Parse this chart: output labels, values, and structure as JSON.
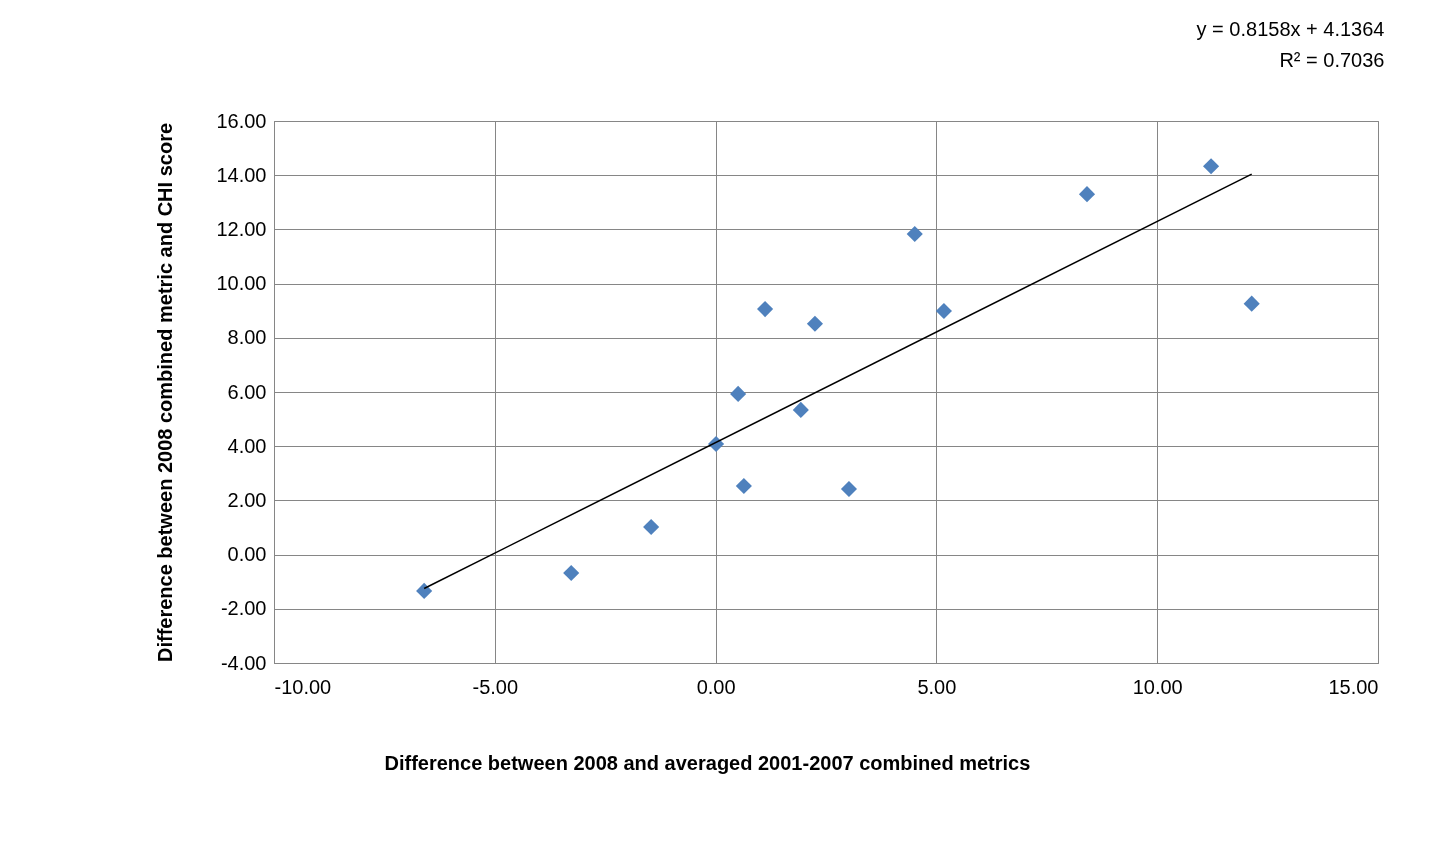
{
  "chart_data": {
    "type": "scatter",
    "xlabel": "Difference between 2008 and averaged 2001-2007 combined metrics",
    "ylabel": "Difference between 2008 combined metric and CHI score",
    "annotations": [
      "y = 0.8158x + 4.1364",
      "R² = 0.7036"
    ],
    "xlim": [
      -10,
      15
    ],
    "xticks": [
      {
        "value": -10,
        "label": "-10.00"
      },
      {
        "value": -5,
        "label": "-5.00"
      },
      {
        "value": 0,
        "label": "0.00"
      },
      {
        "value": 5,
        "label": "5.00"
      },
      {
        "value": 10,
        "label": "10.00"
      },
      {
        "value": 15,
        "label": "15.00"
      }
    ],
    "ylim": [
      -4,
      16
    ],
    "yticks": [
      {
        "value": -4,
        "label": "-4.00"
      },
      {
        "value": -2,
        "label": "-2.00"
      },
      {
        "value": 0,
        "label": "0.00"
      },
      {
        "value": 2,
        "label": "2.00"
      },
      {
        "value": 4,
        "label": "4.00"
      },
      {
        "value": 6,
        "label": "6.00"
      },
      {
        "value": 8,
        "label": "8.00"
      },
      {
        "value": 10,
        "label": "10.00"
      },
      {
        "value": 12,
        "label": "12.00"
      },
      {
        "value": 14,
        "label": "14.00"
      },
      {
        "value": 16,
        "label": "16.00"
      }
    ],
    "grid": true,
    "marker": "diamond",
    "series": [
      {
        "color": "#4f81bd",
        "x": [
          -6.6,
          -3.27,
          -1.46,
          0.01,
          0.51,
          0.64,
          1.12,
          1.93,
          2.25,
          3.02,
          4.51,
          5.17,
          8.41,
          11.22,
          12.14
        ],
        "values": [
          -1.34,
          -0.68,
          1.02,
          4.08,
          5.93,
          2.53,
          9.06,
          5.34,
          8.52,
          2.42,
          11.83,
          8.99,
          13.3,
          14.33,
          9.26
        ]
      },
      {
        "type": "line",
        "color": "#000000",
        "marker": "none",
        "x": [
          -6.6,
          12.14
        ],
        "values": [
          -1.25,
          14.04
        ]
      }
    ]
  }
}
